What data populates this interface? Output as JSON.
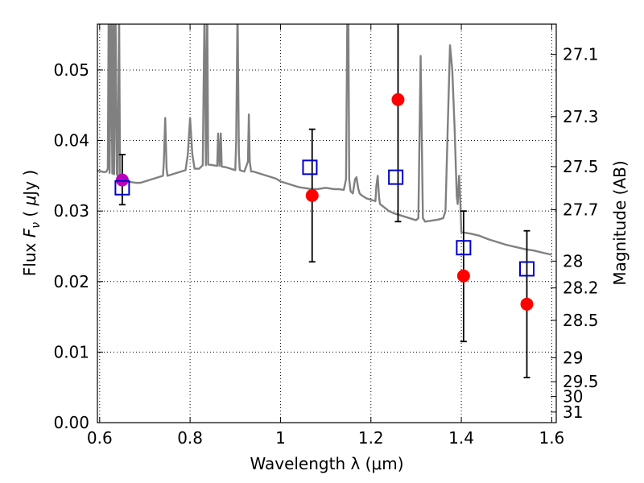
{
  "chart_data": {
    "type": "scatter",
    "xlabel": "Wavelength  λ (μm)",
    "ylabel": "Flux  Fν  ( μJy )",
    "y2label": "Magnitude (AB)",
    "xlim": [
      0.595,
      1.61
    ],
    "ylim": [
      0.0,
      0.0565
    ],
    "xticks": [
      0.6,
      0.8,
      1.0,
      1.2,
      1.4,
      1.6
    ],
    "xtick_labels": [
      "0.6",
      "0.8",
      "1",
      "1.2",
      "1.4",
      "1.6"
    ],
    "yticks": [
      0.0,
      0.01,
      0.02,
      0.03,
      0.04,
      0.05
    ],
    "ytick_labels": [
      "0.00",
      "0.01",
      "0.02",
      "0.03",
      "0.04",
      "0.05"
    ],
    "y2ticks": [
      {
        "label": "27.1",
        "flux": 0.0522
      },
      {
        "label": "27.3",
        "flux": 0.0434
      },
      {
        "label": "27.5",
        "flux": 0.0363
      },
      {
        "label": "27.7",
        "flux": 0.0302
      },
      {
        "label": "28",
        "flux": 0.0229
      },
      {
        "label": "28.2",
        "flux": 0.0191
      },
      {
        "label": "28.5",
        "flux": 0.0145
      },
      {
        "label": "29",
        "flux": 0.0092
      },
      {
        "label": "29.5",
        "flux": 0.0058
      },
      {
        "label": "30",
        "flux": 0.0037
      },
      {
        "label": "31",
        "flux": 0.0015
      }
    ],
    "grid": true,
    "colors": {
      "model": "#808080",
      "observed": "#ff0000",
      "model_photometry": "#0000cc",
      "first_point": "#bb00bb",
      "errorbar": "#000000"
    },
    "series": [
      {
        "kind": "model_spectrum",
        "x": [
          0.59,
          0.6,
          0.61,
          0.615,
          0.618,
          0.62,
          0.622,
          0.625,
          0.628,
          0.63,
          0.632,
          0.635,
          0.638,
          0.64,
          0.643,
          0.645,
          0.65,
          0.66,
          0.67,
          0.68,
          0.69,
          0.7,
          0.71,
          0.72,
          0.73,
          0.74,
          0.742,
          0.745,
          0.748,
          0.75,
          0.76,
          0.77,
          0.78,
          0.79,
          0.795,
          0.8,
          0.805,
          0.81,
          0.82,
          0.828,
          0.832,
          0.835,
          0.838,
          0.84,
          0.85,
          0.86,
          0.862,
          0.865,
          0.868,
          0.87,
          0.88,
          0.89,
          0.9,
          0.902,
          0.905,
          0.908,
          0.91,
          0.92,
          0.928,
          0.93,
          0.932,
          0.935,
          0.94,
          0.95,
          0.96,
          0.97,
          0.98,
          0.99,
          1.0,
          1.01,
          1.02,
          1.03,
          1.04,
          1.05,
          1.06,
          1.07,
          1.08,
          1.09,
          1.1,
          1.11,
          1.12,
          1.13,
          1.14,
          1.145,
          1.148,
          1.15,
          1.152,
          1.155,
          1.16,
          1.165,
          1.168,
          1.172,
          1.175,
          1.18,
          1.19,
          1.2,
          1.21,
          1.212,
          1.215,
          1.218,
          1.22,
          1.23,
          1.24,
          1.25,
          1.26,
          1.27,
          1.28,
          1.29,
          1.3,
          1.305,
          1.31,
          1.315,
          1.32,
          1.33,
          1.34,
          1.35,
          1.36,
          1.365,
          1.37,
          1.375,
          1.38,
          1.385,
          1.39,
          1.392,
          1.395,
          1.398,
          1.4,
          1.42,
          1.44,
          1.46,
          1.48,
          1.5,
          1.52,
          1.54,
          1.56,
          1.58,
          1.6
        ],
        "y": [
          0.0357,
          0.0357,
          0.0355,
          0.0356,
          0.036,
          0.059,
          0.0354,
          0.059,
          0.0353,
          0.059,
          0.0352,
          0.059,
          0.0352,
          0.035,
          0.059,
          0.0351,
          0.0345,
          0.0342,
          0.0341,
          0.034,
          0.034,
          0.0342,
          0.0344,
          0.0346,
          0.0348,
          0.035,
          0.037,
          0.0432,
          0.036,
          0.035,
          0.0352,
          0.0354,
          0.0356,
          0.0358,
          0.038,
          0.0432,
          0.038,
          0.036,
          0.036,
          0.0365,
          0.059,
          0.0365,
          0.059,
          0.0366,
          0.0365,
          0.0364,
          0.041,
          0.0364,
          0.041,
          0.0363,
          0.0362,
          0.036,
          0.0358,
          0.04,
          0.059,
          0.038,
          0.0358,
          0.0356,
          0.037,
          0.0437,
          0.037,
          0.0356,
          0.0356,
          0.0354,
          0.0352,
          0.035,
          0.0348,
          0.0346,
          0.0342,
          0.034,
          0.0338,
          0.0336,
          0.0334,
          0.0333,
          0.0332,
          0.0331,
          0.0331,
          0.0332,
          0.0333,
          0.0332,
          0.0331,
          0.0331,
          0.033,
          0.0345,
          0.059,
          0.059,
          0.0345,
          0.0328,
          0.0325,
          0.0345,
          0.0348,
          0.0332,
          0.0325,
          0.0322,
          0.0318,
          0.0316,
          0.0314,
          0.0335,
          0.035,
          0.032,
          0.031,
          0.0305,
          0.03,
          0.0297,
          0.0295,
          0.0293,
          0.0291,
          0.0289,
          0.0287,
          0.029,
          0.052,
          0.029,
          0.0285,
          0.0286,
          0.0287,
          0.0288,
          0.029,
          0.03,
          0.042,
          0.0535,
          0.05,
          0.042,
          0.032,
          0.031,
          0.035,
          0.031,
          0.027,
          0.0268,
          0.0265,
          0.026,
          0.0256,
          0.0252,
          0.0249,
          0.0246,
          0.0244,
          0.0241,
          0.0238
        ]
      },
      {
        "kind": "observed",
        "x": [
          0.65,
          1.07,
          1.26,
          1.405,
          1.545
        ],
        "y": [
          0.0344,
          0.0322,
          0.0458,
          0.0208,
          0.0168
        ],
        "yerr_low": [
          0.0035,
          0.0094,
          0.0173,
          0.0093,
          0.0104
        ],
        "yerr_high": [
          0.0036,
          0.0094,
          0.0173,
          0.0092,
          0.0104
        ]
      },
      {
        "kind": "model_photometry",
        "x": [
          0.65,
          1.065,
          1.255,
          1.405,
          1.545
        ],
        "y": [
          0.0333,
          0.0362,
          0.0348,
          0.0248,
          0.0218
        ]
      }
    ]
  }
}
